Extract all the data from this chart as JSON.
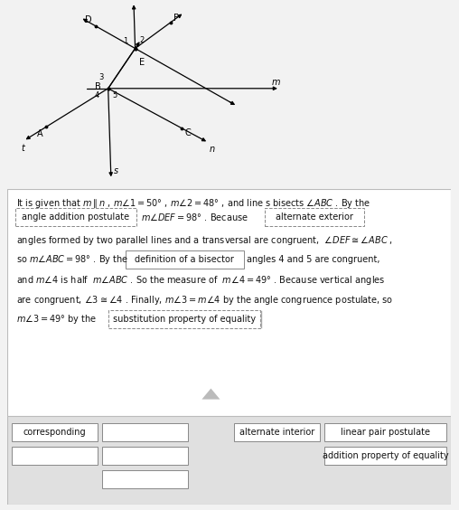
{
  "bg_color": "#f2f2f2",
  "panel_color": "#ffffff",
  "bottom_panel_color": "#e0e0e0",
  "blank1_text": "angle addition postulate",
  "blank2_text": "alternate exterior",
  "blank3_text": "definition of a bisector",
  "blank4_text": "substitution property of equality",
  "answer_row1": [
    "corresponding",
    "",
    "alternate interior",
    "linear pair postulate"
  ],
  "answer_row2": [
    "",
    "",
    "addition property of equality"
  ],
  "answer_row3": [
    ""
  ]
}
